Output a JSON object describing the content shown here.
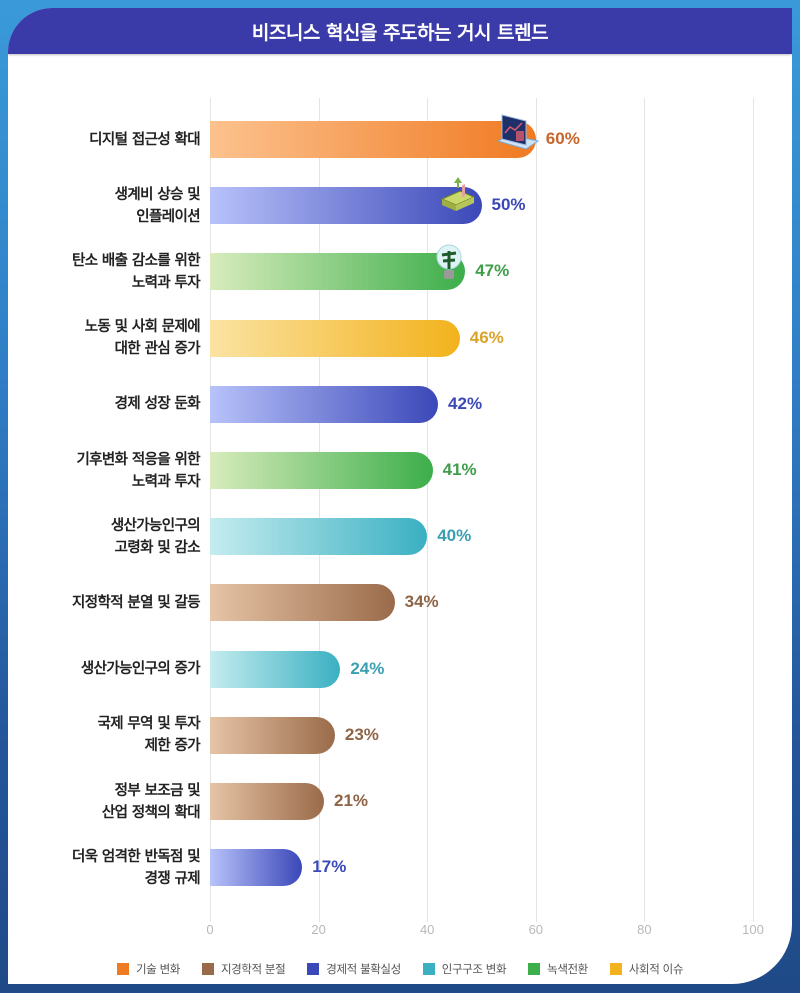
{
  "header": {
    "title": "비즈니스 혁신을 주도하는 거시 트렌드"
  },
  "colors": {
    "tech": "#f07a22",
    "geo": "#9a6b4a",
    "econ": "#3b48b8",
    "demo": "#3ab0c2",
    "green": "#3cae4a",
    "social": "#f2b21c",
    "title_bg": "#3a3aa8"
  },
  "legend": [
    {
      "label": "기술 변화",
      "color": "#f07a22"
    },
    {
      "label": "지경학적 분절",
      "color": "#9a6b4a"
    },
    {
      "label": "경제적 불확실성",
      "color": "#3b48b8"
    },
    {
      "label": "인구구조 변화",
      "color": "#3ab0c2"
    },
    {
      "label": "녹색전환",
      "color": "#3cae4a"
    },
    {
      "label": "사회적 이슈",
      "color": "#f2b21c"
    }
  ],
  "axis": {
    "ticks": [
      "0",
      "20",
      "40",
      "60",
      "80",
      "100"
    ]
  },
  "rows": [
    {
      "line1": "디지털 접근성 확대",
      "line2": "",
      "value": "60%"
    },
    {
      "line1": "생계비 상승 및",
      "line2": "인플레이션",
      "value": "50%"
    },
    {
      "line1": "탄소 배출 감소를 위한",
      "line2": "노력과 투자",
      "value": "47%"
    },
    {
      "line1": "노동 및 사회 문제에",
      "line2": "대한 관심 증가",
      "value": "46%"
    },
    {
      "line1": "경제 성장 둔화",
      "line2": "",
      "value": "42%"
    },
    {
      "line1": "기후변화 적응을 위한",
      "line2": "노력과 투자",
      "value": "41%"
    },
    {
      "line1": "생산가능인구의",
      "line2": "고령화 및 감소",
      "value": "40%"
    },
    {
      "line1": "지정학적 분열 및 갈등",
      "line2": "",
      "value": "34%"
    },
    {
      "line1": "생산가능인구의 증가",
      "line2": "",
      "value": "24%"
    },
    {
      "line1": "국제 무역 및 투자",
      "line2": "제한 증가",
      "value": "23%"
    },
    {
      "line1": "정부 보조금 및",
      "line2": "산업 정책의 확대",
      "value": "21%"
    },
    {
      "line1": "더욱 엄격한 반독점 및",
      "line2": "경쟁 규제",
      "value": "17%"
    }
  ],
  "chart_data": {
    "type": "bar",
    "orientation": "horizontal",
    "title": "비즈니스 혁신을 주도하는 거시 트렌드",
    "xlabel": "",
    "ylabel": "",
    "xlim": [
      0,
      100
    ],
    "xticks": [
      0,
      20,
      40,
      60,
      80,
      100
    ],
    "grid": true,
    "legend_position": "bottom",
    "categories": [
      "디지털 접근성 확대",
      "생계비 상승 및 인플레이션",
      "탄소 배출 감소를 위한 노력과 투자",
      "노동 및 사회 문제에 대한 관심 증가",
      "경제 성장 둔화",
      "기후변화 적응을 위한 노력과 투자",
      "생산가능인구의 고령화 및 감소",
      "지정학적 분열 및 갈등",
      "생산가능인구의 증가",
      "국제 무역 및 투자 제한 증가",
      "정부 보조금 및 산업 정책의 확대",
      "더욱 엄격한 반독점 및 경쟁 규제"
    ],
    "values": [
      60,
      50,
      47,
      46,
      42,
      41,
      40,
      34,
      24,
      23,
      21,
      17
    ],
    "groups": [
      "기술 변화",
      "경제적 불확실성",
      "녹색전환",
      "사회적 이슈",
      "경제적 불확실성",
      "녹색전환",
      "인구구조 변화",
      "지경학적 분절",
      "인구구조 변화",
      "지경학적 분절",
      "지경학적 분절",
      "경제적 불확실성"
    ],
    "legend": [
      "기술 변화",
      "지경학적 분절",
      "경제적 불확실성",
      "인구구조 변화",
      "녹색전환",
      "사회적 이슈"
    ],
    "value_labels": [
      "60%",
      "50%",
      "47%",
      "46%",
      "42%",
      "41%",
      "40%",
      "34%",
      "24%",
      "23%",
      "21%",
      "17%"
    ]
  }
}
